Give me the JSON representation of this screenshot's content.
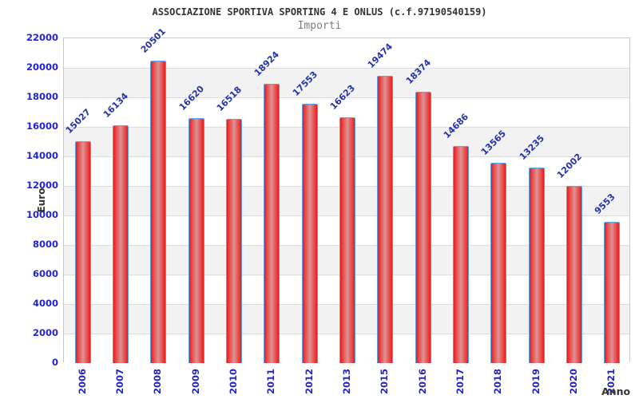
{
  "chart_data": {
    "type": "bar",
    "title": "ASSOCIAZIONE SPORTIVA SPORTING 4 E ONLUS (c.f.97190540159)",
    "subtitle": "Importi",
    "xlabel": "Anno",
    "ylabel": "Euro",
    "categories": [
      "2006",
      "2007",
      "2008",
      "2009",
      "2010",
      "2011",
      "2012",
      "2013",
      "2015",
      "2016",
      "2017",
      "2018",
      "2019",
      "2020",
      "2021"
    ],
    "values": [
      15027,
      16134,
      20501,
      16620,
      16518,
      18924,
      17553,
      16623,
      19474,
      18374,
      14686,
      13565,
      13235,
      12002,
      9553
    ],
    "ylim": [
      0,
      22000
    ],
    "ytick_step": 2000,
    "yticks": [
      "0",
      "2000",
      "4000",
      "6000",
      "8000",
      "10000",
      "12000",
      "14000",
      "16000",
      "18000",
      "20000",
      "22000"
    ],
    "grid": true,
    "legend_position": "none",
    "colors": {
      "bar_fill_edge": "#d92020",
      "bar_fill_center": "#dc9494",
      "bar_border": "#58a2e8",
      "tick_label": "#2323cd",
      "value_label": "#2333aa",
      "band_alt": "#f2f2f2",
      "gridline": "#dcdcdc",
      "title": "#333333",
      "subtitle": "#7d7d7d"
    }
  }
}
